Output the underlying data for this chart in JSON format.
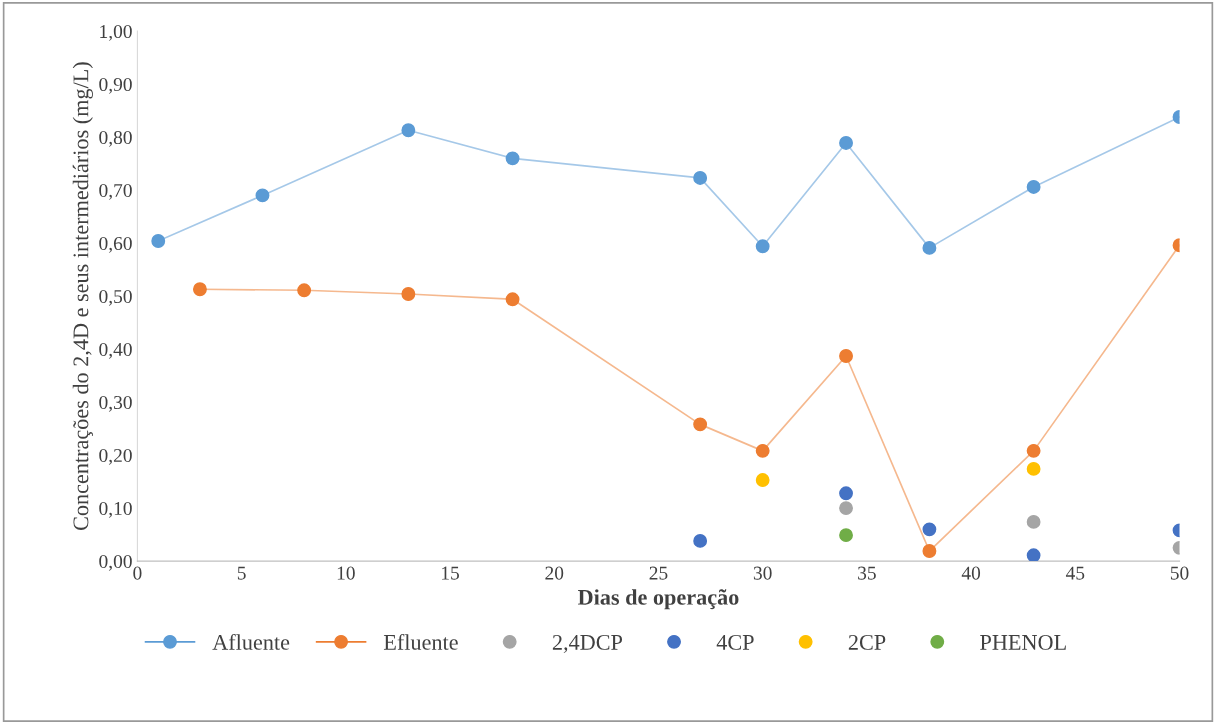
{
  "chart_data": {
    "type": "line",
    "xlabel": "Dias de operação",
    "ylabel": "Concentrações do 2,4D e seus intermediários (mg/L)",
    "xlim": [
      0,
      50
    ],
    "xticks": [
      0,
      5,
      10,
      15,
      20,
      25,
      30,
      35,
      40,
      45,
      50
    ],
    "ylim": [
      0,
      1.0
    ],
    "yticks": [
      {
        "value": 0,
        "label": "0,00"
      },
      {
        "value": 0.1,
        "label": "0,10"
      },
      {
        "value": 0.2,
        "label": "0,20"
      },
      {
        "value": 0.3,
        "label": "0,30"
      },
      {
        "value": 0.4,
        "label": "0,40"
      },
      {
        "value": 0.5,
        "label": "0,50"
      },
      {
        "value": 0.6,
        "label": "0,60"
      },
      {
        "value": 0.7,
        "label": "0,70"
      },
      {
        "value": 0.8,
        "label": "0,80"
      },
      {
        "value": 0.9,
        "label": "0,90"
      },
      {
        "value": 1.0,
        "label": "1,00"
      }
    ],
    "grid": false,
    "legend": "bottom",
    "marker": "circle",
    "series": [
      {
        "name": "Afluente",
        "color": "#5b9bd5",
        "x": [
          1,
          6,
          13,
          18,
          27,
          30,
          34,
          38,
          43,
          50
        ],
        "values": [
          0.604,
          0.69,
          0.813,
          0.76,
          0.723,
          0.594,
          0.789,
          0.591,
          0.706,
          0.838
        ]
      },
      {
        "name": "Efluente",
        "color": "#ed7d31",
        "x": [
          3,
          8,
          13,
          18,
          27,
          30,
          34,
          38,
          43,
          50
        ],
        "values": [
          0.513,
          0.511,
          0.504,
          0.494,
          0.258,
          0.208,
          0.387,
          0.019,
          0.208,
          0.596
        ]
      },
      {
        "name": "2,4DCP",
        "type": "scatter",
        "color": "#a5a5a5",
        "x": [
          34,
          43,
          50
        ],
        "values": [
          0.1,
          0.074,
          0.025
        ]
      },
      {
        "name": "4CP",
        "type": "scatter",
        "color": "#4472c4",
        "x": [
          27,
          34,
          38,
          43,
          50
        ],
        "values": [
          0.038,
          0.128,
          0.06,
          0.011,
          0.058
        ]
      },
      {
        "name": "2CP",
        "type": "scatter",
        "color": "#ffc000",
        "x": [
          30,
          43
        ],
        "values": [
          0.153,
          0.174
        ]
      },
      {
        "name": "PHENOL",
        "type": "scatter",
        "color": "#70ad47",
        "x": [
          34
        ],
        "values": [
          0.049
        ]
      }
    ]
  }
}
